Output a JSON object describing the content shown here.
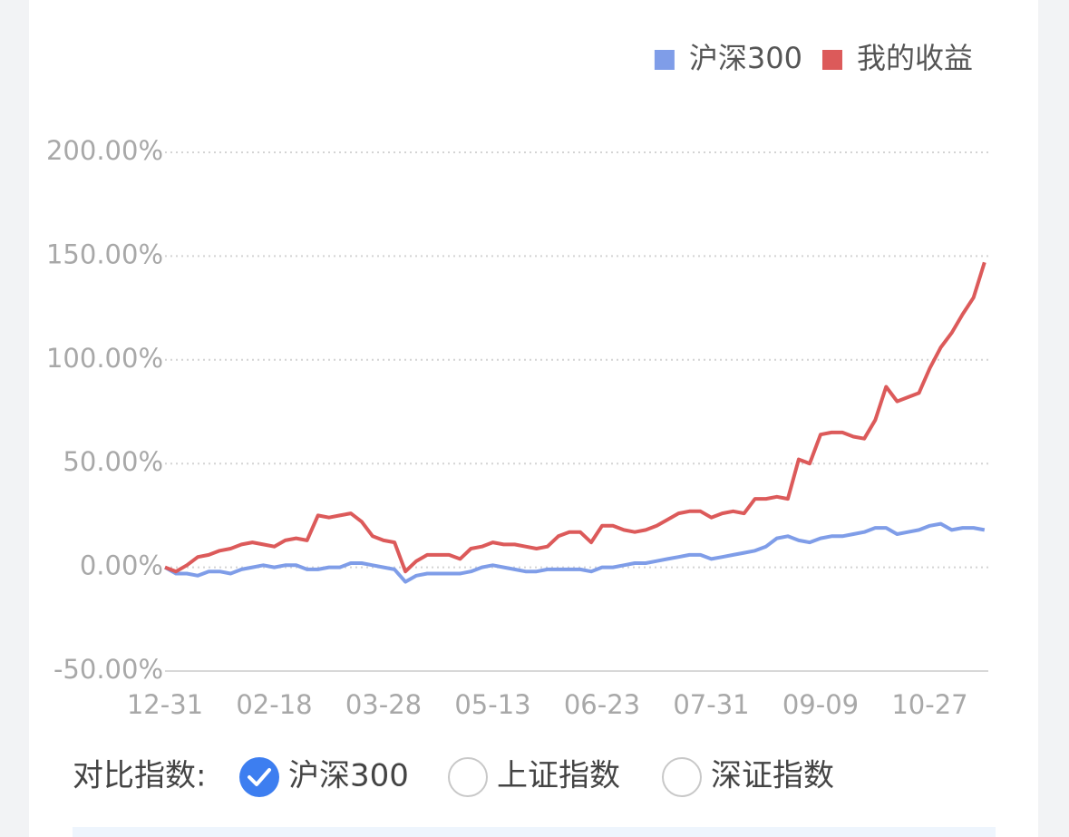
{
  "chart_data": {
    "type": "line",
    "categories": [
      "12-31",
      null,
      null,
      null,
      null,
      null,
      null,
      null,
      null,
      null,
      "02-18",
      null,
      null,
      null,
      null,
      null,
      null,
      null,
      null,
      null,
      "03-28",
      null,
      null,
      null,
      null,
      null,
      null,
      null,
      null,
      null,
      "05-13",
      null,
      null,
      null,
      null,
      null,
      null,
      null,
      null,
      null,
      "06-23",
      null,
      null,
      null,
      null,
      null,
      null,
      null,
      null,
      null,
      "07-31",
      null,
      null,
      null,
      null,
      null,
      null,
      null,
      null,
      null,
      "09-09",
      null,
      null,
      null,
      null,
      null,
      null,
      null,
      null,
      null,
      "10-27",
      null,
      null,
      null,
      null,
      null
    ],
    "series": [
      {
        "name": "沪深300",
        "color": "#7f9de8",
        "values": [
          0,
          -3,
          -3,
          -4,
          -2,
          -2,
          -3,
          -1,
          0,
          1,
          0,
          1,
          1,
          -1,
          -1,
          0,
          0,
          2,
          2,
          1,
          0,
          -1,
          -7,
          -4,
          -3,
          -3,
          -3,
          -3,
          -2,
          0,
          1,
          0,
          -1,
          -2,
          -2,
          -1,
          -1,
          -1,
          -1,
          -2,
          0,
          0,
          1,
          2,
          2,
          3,
          4,
          5,
          6,
          6,
          4,
          5,
          6,
          7,
          8,
          10,
          14,
          15,
          13,
          12,
          14,
          15,
          15,
          16,
          17,
          19,
          19,
          16,
          17,
          18,
          20,
          21,
          18,
          19,
          19,
          18
        ]
      },
      {
        "name": "我的收益",
        "color": "#dc5a5a",
        "values": [
          0,
          -2,
          1,
          5,
          6,
          8,
          9,
          11,
          12,
          11,
          10,
          13,
          14,
          13,
          25,
          24,
          25,
          26,
          22,
          15,
          13,
          12,
          -2,
          3,
          6,
          6,
          6,
          4,
          9,
          10,
          12,
          11,
          11,
          10,
          9,
          10,
          15,
          17,
          17,
          12,
          20,
          20,
          18,
          17,
          18,
          20,
          23,
          26,
          27,
          27,
          24,
          26,
          27,
          26,
          33,
          33,
          34,
          33,
          52,
          50,
          64,
          65,
          65,
          63,
          62,
          71,
          87,
          80,
          82,
          84,
          96,
          106,
          113,
          122,
          130,
          147
        ]
      }
    ],
    "ylim": [
      -50,
      200
    ],
    "yticks": [
      {
        "value": -50,
        "label": "-50.00%"
      },
      {
        "value": 0,
        "label": "0.00%"
      },
      {
        "value": 50,
        "label": "50.00%"
      },
      {
        "value": 100,
        "label": "100.00%"
      },
      {
        "value": 150,
        "label": "150.00%"
      },
      {
        "value": 200,
        "label": "200.00%"
      }
    ],
    "grid": true,
    "legend": "top-right"
  },
  "compare": {
    "label": "对比指数:",
    "options": [
      "沪深300",
      "上证指数",
      "深证指数"
    ],
    "selected": 0
  }
}
